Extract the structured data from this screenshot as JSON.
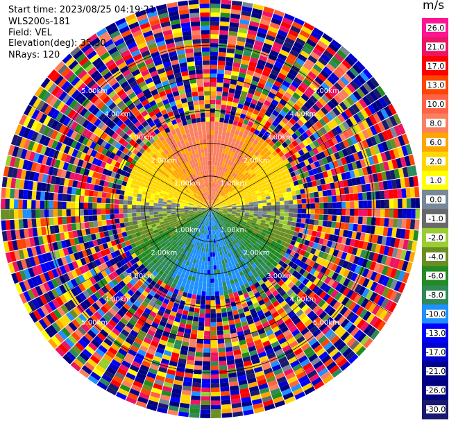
{
  "header": {
    "start_time": "Start time: 2023/08/25 04:19:21",
    "instrument": "WLS200s-181",
    "field": "Field: VEL",
    "elevation": "Elevation(deg): 35.30",
    "nrays": "NRays: 120"
  },
  "chart_data": {
    "type": "heatmap",
    "projection": "polar-ppi",
    "field": "VEL",
    "units": "m/s",
    "nrays": 120,
    "elevation_deg": 35.3,
    "range_rings_km": [
      1.0,
      2.0,
      3.0,
      4.0,
      5.0
    ],
    "range_ring_labels": [
      "1.00km",
      "2.00km",
      "3.00km",
      "4.00km",
      "5.00km"
    ],
    "max_range_km": 6.4,
    "colorbar": {
      "title": "m/s",
      "ticks": [
        "26.0",
        "21.0",
        "17.0",
        "13.0",
        "10.0",
        "8.0",
        "6.0",
        "2.0",
        "1.0",
        "0.0",
        "-1.0",
        "-2.0",
        "-4.0",
        "-6.0",
        "-8.0",
        "-10.0",
        "-13.0",
        "-17.0",
        "-21.0",
        "-26.0",
        "-30.0"
      ],
      "colors": [
        "#ff1493",
        "#ee1464",
        "#ff0000",
        "#ff4500",
        "#ff6347",
        "#fa8060",
        "#ffa500",
        "#ffd700",
        "#ffff00",
        "#778899",
        "#696969",
        "#9acd32",
        "#6b8e23",
        "#228b22",
        "#2e8b57",
        "#1e90ff",
        "#0000ff",
        "#0000cd",
        "#00008b",
        "#000080",
        "#191970"
      ]
    },
    "pattern": {
      "north_sector": "positive 6 to 10 m/s near range 0.5-2.5 km",
      "east_west_band": "near 0 m/s",
      "south_sector": "negative -8 to -10 m/s",
      "beyond_km": 2.7,
      "beyond_description": "noise / random values across full scale"
    }
  }
}
